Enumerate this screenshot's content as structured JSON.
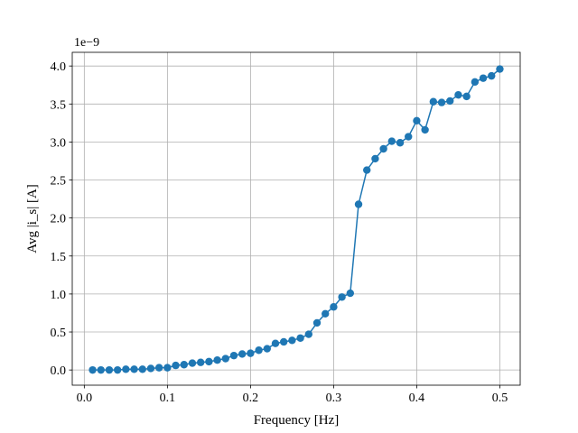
{
  "chart_data": {
    "type": "line",
    "title": "",
    "xlabel": "Frequency [Hz]",
    "ylabel": "Avg |i_s| [A]",
    "y_offset_label": "1e−9",
    "xlim": [
      -0.0145,
      0.5245
    ],
    "ylim": [
      -0.2,
      4.18
    ],
    "x_ticks": [
      0.0,
      0.1,
      0.2,
      0.3,
      0.4,
      0.5
    ],
    "x_tick_labels": [
      "0.0",
      "0.1",
      "0.2",
      "0.3",
      "0.4",
      "0.5"
    ],
    "y_ticks": [
      0.0,
      0.5,
      1.0,
      1.5,
      2.0,
      2.5,
      3.0,
      3.5,
      4.0
    ],
    "y_tick_labels": [
      "0.0",
      "0.5",
      "1.0",
      "1.5",
      "2.0",
      "2.5",
      "3.0",
      "3.5",
      "4.0"
    ],
    "grid": true,
    "marker": "circle",
    "color": "#1f77b4",
    "series": [
      {
        "x": [
          0.01,
          0.02,
          0.03,
          0.04,
          0.05,
          0.06,
          0.07,
          0.08,
          0.09,
          0.1,
          0.11,
          0.12,
          0.13,
          0.14,
          0.15,
          0.16,
          0.17,
          0.18,
          0.19,
          0.2,
          0.21,
          0.22,
          0.23,
          0.24,
          0.25,
          0.26,
          0.27,
          0.28,
          0.29,
          0.3,
          0.31,
          0.32,
          0.33,
          0.34,
          0.35,
          0.36,
          0.37,
          0.38,
          0.39,
          0.4,
          0.41,
          0.42,
          0.43,
          0.44,
          0.45,
          0.46,
          0.47,
          0.48,
          0.49,
          0.5
        ],
        "y": [
          0.0,
          0.0,
          0.0,
          0.0,
          0.01,
          0.01,
          0.01,
          0.02,
          0.03,
          0.03,
          0.06,
          0.07,
          0.09,
          0.1,
          0.11,
          0.13,
          0.15,
          0.19,
          0.21,
          0.22,
          0.26,
          0.28,
          0.35,
          0.37,
          0.39,
          0.42,
          0.47,
          0.62,
          0.74,
          0.83,
          0.96,
          1.01,
          2.18,
          2.63,
          2.78,
          2.91,
          3.01,
          2.99,
          3.07,
          3.28,
          3.16,
          3.53,
          3.52,
          3.54,
          3.62,
          3.6,
          3.79,
          3.84,
          3.87,
          3.96
        ]
      }
    ]
  }
}
